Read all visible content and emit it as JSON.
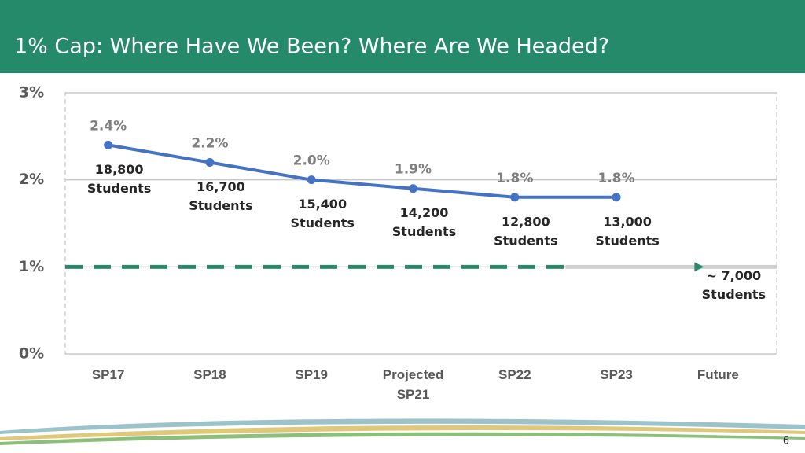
{
  "chart_data": {
    "type": "line",
    "title": "1% Cap: Where Have We Been? Where Are We Headed?",
    "categories": [
      "SP17",
      "SP18",
      "SP19",
      "Projected SP21",
      "SP22",
      "SP23",
      "Future"
    ],
    "series": [
      {
        "color": "#4472c4",
        "values": [
          2.4,
          2.2,
          2.0,
          1.9,
          1.8,
          1.8,
          null
        ],
        "value_labels": [
          "2.4%",
          "2.2%",
          "2.0%",
          "1.9%",
          "1.8%",
          "1.8%",
          null
        ]
      }
    ],
    "student_labels": [
      [
        "18,800",
        "Students"
      ],
      [
        "16,700",
        "Students"
      ],
      [
        "15,400",
        "Students"
      ],
      [
        "14,200",
        "Students"
      ],
      [
        "12,800",
        "Students"
      ],
      [
        "13,000",
        "Students"
      ],
      [
        "~ 7,000",
        "Students"
      ]
    ],
    "reference_line": {
      "value": 1,
      "color": "#2e8b6a"
    },
    "ylim": [
      0,
      3
    ],
    "yticks": [
      {
        "value": 0,
        "label": "0%"
      },
      {
        "value": 1,
        "label": "1%"
      },
      {
        "value": 2,
        "label": "2%"
      },
      {
        "value": 3,
        "label": "3%"
      }
    ],
    "grid": true
  },
  "page_number": "6"
}
